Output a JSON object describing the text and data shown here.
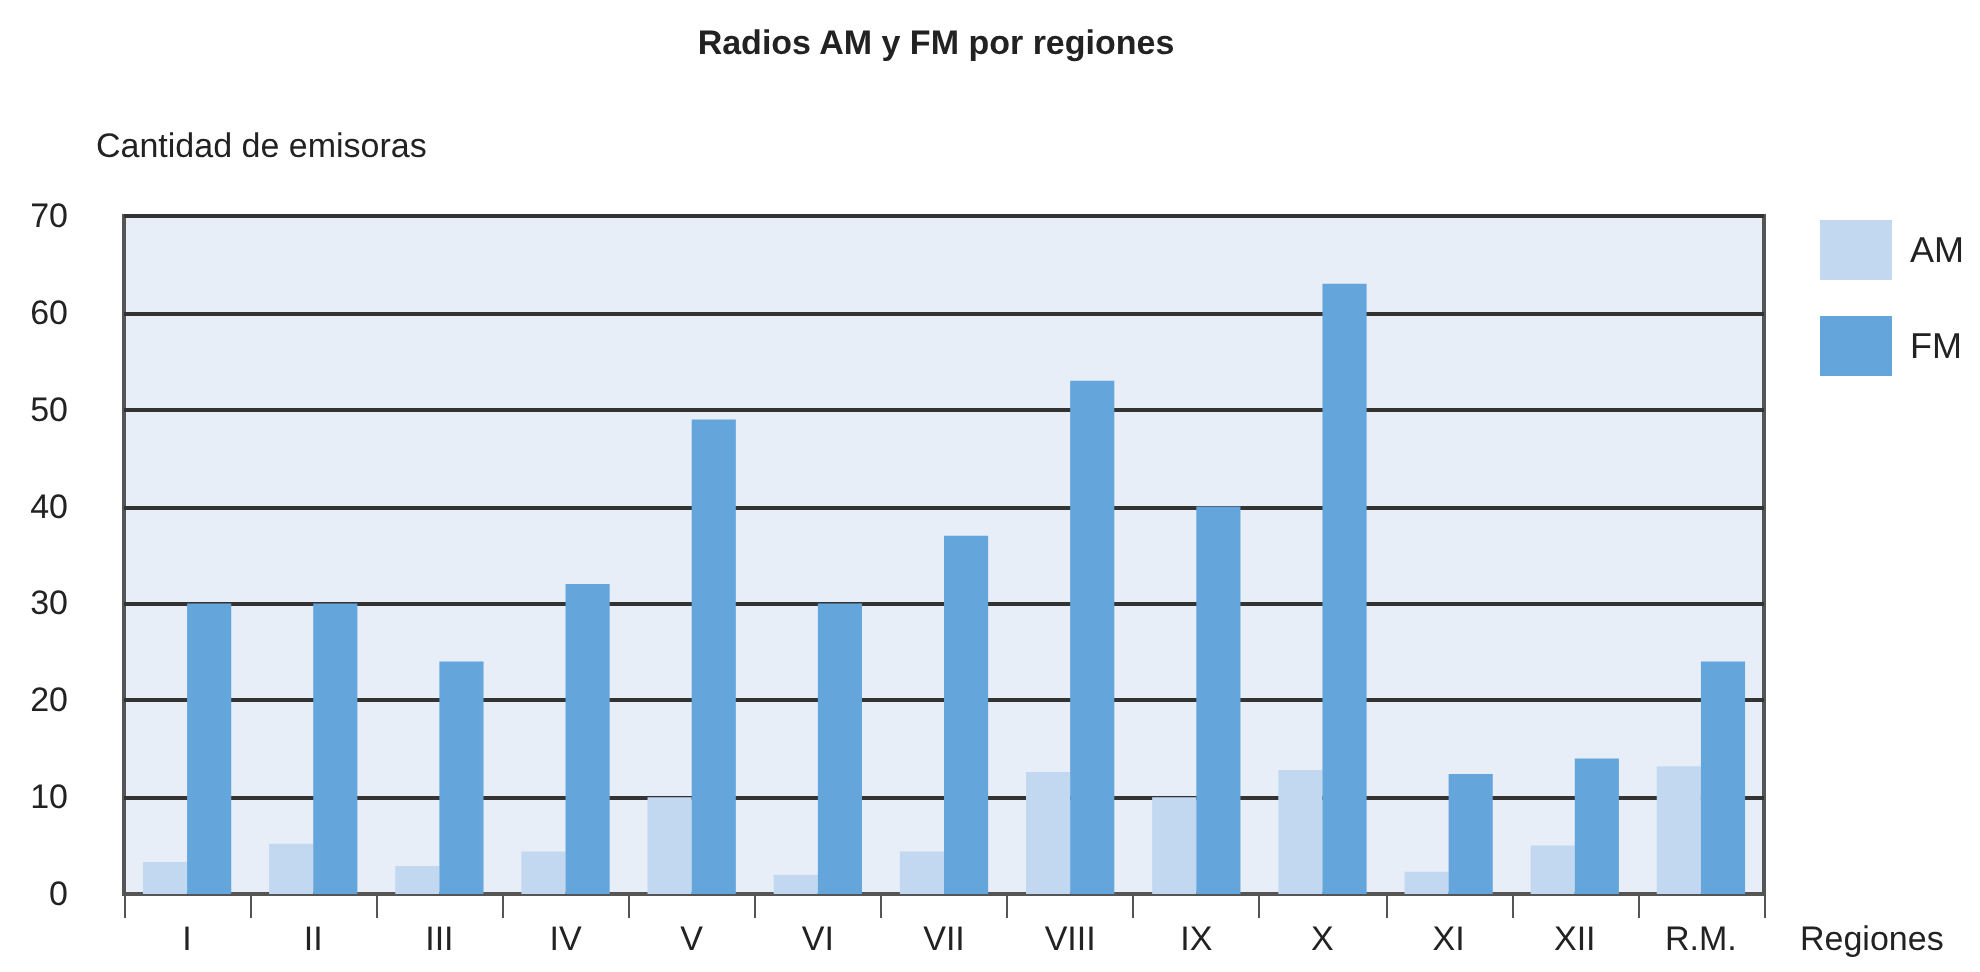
{
  "chart_data": {
    "type": "bar",
    "title": "Radios AM y FM por regiones",
    "ylabel": "Cantidad de emisoras",
    "xlabel": "Regiones",
    "categories": [
      "I",
      "II",
      "III",
      "IV",
      "V",
      "VI",
      "VII",
      "VIII",
      "IX",
      "X",
      "XI",
      "XII",
      "R.M."
    ],
    "series": [
      {
        "name": "AM",
        "color": "#c2d8f0",
        "values": [
          3.3,
          5.2,
          2.9,
          4.4,
          10,
          2,
          4.4,
          12.6,
          10,
          12.8,
          2.3,
          5,
          13.2
        ]
      },
      {
        "name": "FM",
        "color": "#64a5db",
        "values": [
          30,
          30,
          24,
          32,
          49,
          30,
          37,
          53,
          40,
          63,
          12.4,
          14,
          24
        ]
      }
    ],
    "ylim": [
      0,
      70
    ],
    "yticks": [
      0,
      10,
      20,
      30,
      40,
      50,
      60,
      70
    ],
    "grid": "y",
    "legend": "top right"
  }
}
